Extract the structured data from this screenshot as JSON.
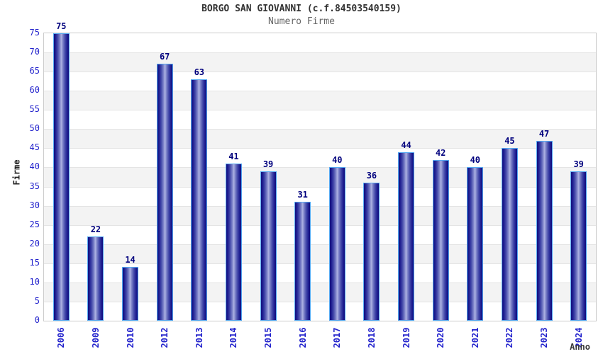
{
  "header": {
    "title": "BORGO SAN GIOVANNI (c.f.84503540159)",
    "subtitle": "Numero Firme"
  },
  "chart_data": {
    "type": "bar",
    "title": "BORGO SAN GIOVANNI (c.f.84503540159)",
    "subtitle": "Numero Firme",
    "xlabel": "Anno",
    "ylabel": "Firme",
    "categories": [
      "2006",
      "2009",
      "2010",
      "2012",
      "2013",
      "2014",
      "2015",
      "2016",
      "2017",
      "2018",
      "2019",
      "2020",
      "2021",
      "2022",
      "2023",
      "2024"
    ],
    "values": [
      75,
      22,
      14,
      67,
      63,
      41,
      39,
      31,
      40,
      36,
      44,
      42,
      40,
      45,
      47,
      39
    ],
    "ylim": [
      0,
      75
    ],
    "ytick_step": 5,
    "yticks": [
      0,
      5,
      10,
      15,
      20,
      25,
      30,
      35,
      40,
      45,
      50,
      55,
      60,
      65,
      70,
      75
    ],
    "legend": "none",
    "grid": "alternating-horizontal-bands",
    "colors": {
      "bar_edge": "#0e0e7e",
      "bar_center": "#aeb3e3",
      "bar_border": "#55a9f2",
      "value_label": "#00007d",
      "tick_label": "#2222cc",
      "band_gray": "#f3f3f3",
      "band_white": "#ffffff",
      "plot_border": "#cccccc",
      "title": "#333333",
      "subtitle": "#666666",
      "axis_title": "#333333"
    }
  }
}
